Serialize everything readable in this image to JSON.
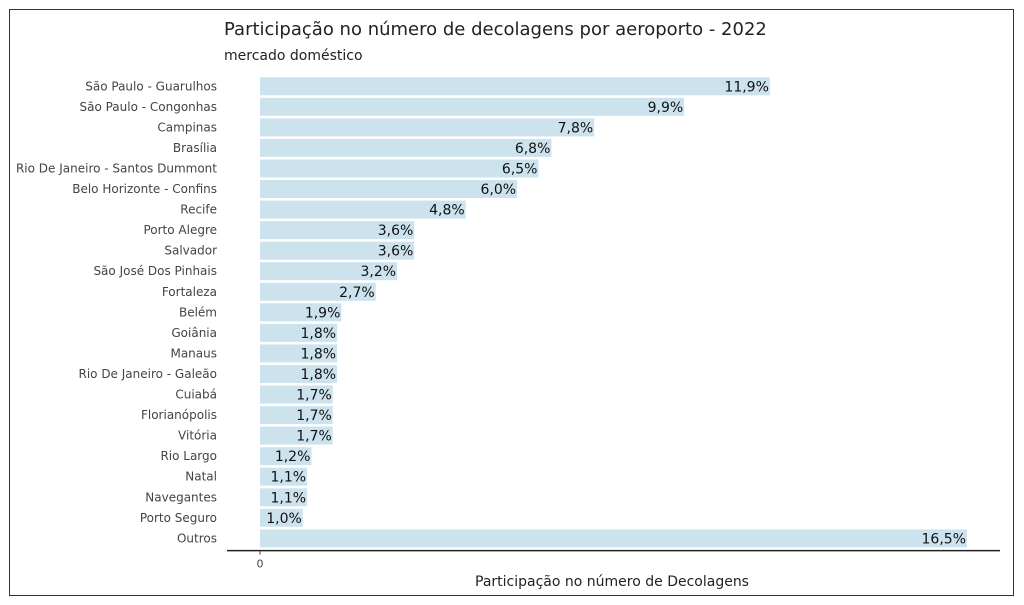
{
  "chart_data": {
    "type": "bar",
    "orientation": "horizontal",
    "title": "Participação no número de decolagens por aeroporto - 2022",
    "subtitle": "mercado doméstico",
    "xlabel": "Participação no número de Decolagens",
    "ylabel": "",
    "x_ticks": [
      "0"
    ],
    "xlim": [
      0,
      17.5
    ],
    "grid": false,
    "legend": "none",
    "bar_color": "#cce3ee",
    "categories": [
      "São Paulo - Guarulhos",
      "São Paulo - Congonhas",
      "Campinas",
      "Brasília",
      "Rio De Janeiro - Santos Dummont",
      "Belo Horizonte - Confins",
      "Recife",
      "Porto Alegre",
      "Salvador",
      "São José Dos Pinhais",
      "Fortaleza",
      "Belém",
      "Goiânia",
      "Manaus",
      "Rio De Janeiro - Galeão",
      "Cuiabá",
      "Florianópolis",
      "Vitória",
      "Rio Largo",
      "Natal",
      "Navegantes",
      "Porto Seguro",
      "Outros"
    ],
    "values": [
      11.9,
      9.9,
      7.8,
      6.8,
      6.5,
      6.0,
      4.8,
      3.6,
      3.6,
      3.2,
      2.7,
      1.9,
      1.8,
      1.8,
      1.8,
      1.7,
      1.7,
      1.7,
      1.2,
      1.1,
      1.1,
      1.0,
      16.5
    ],
    "value_labels": [
      "11,9%",
      "9,9%",
      "7,8%",
      "6,8%",
      "6,5%",
      "6,0%",
      "4,8%",
      "3,6%",
      "3,6%",
      "3,2%",
      "2,7%",
      "1,9%",
      "1,8%",
      "1,8%",
      "1,8%",
      "1,7%",
      "1,7%",
      "1,7%",
      "1,2%",
      "1,1%",
      "1,1%",
      "1,0%",
      "16,5%"
    ]
  }
}
